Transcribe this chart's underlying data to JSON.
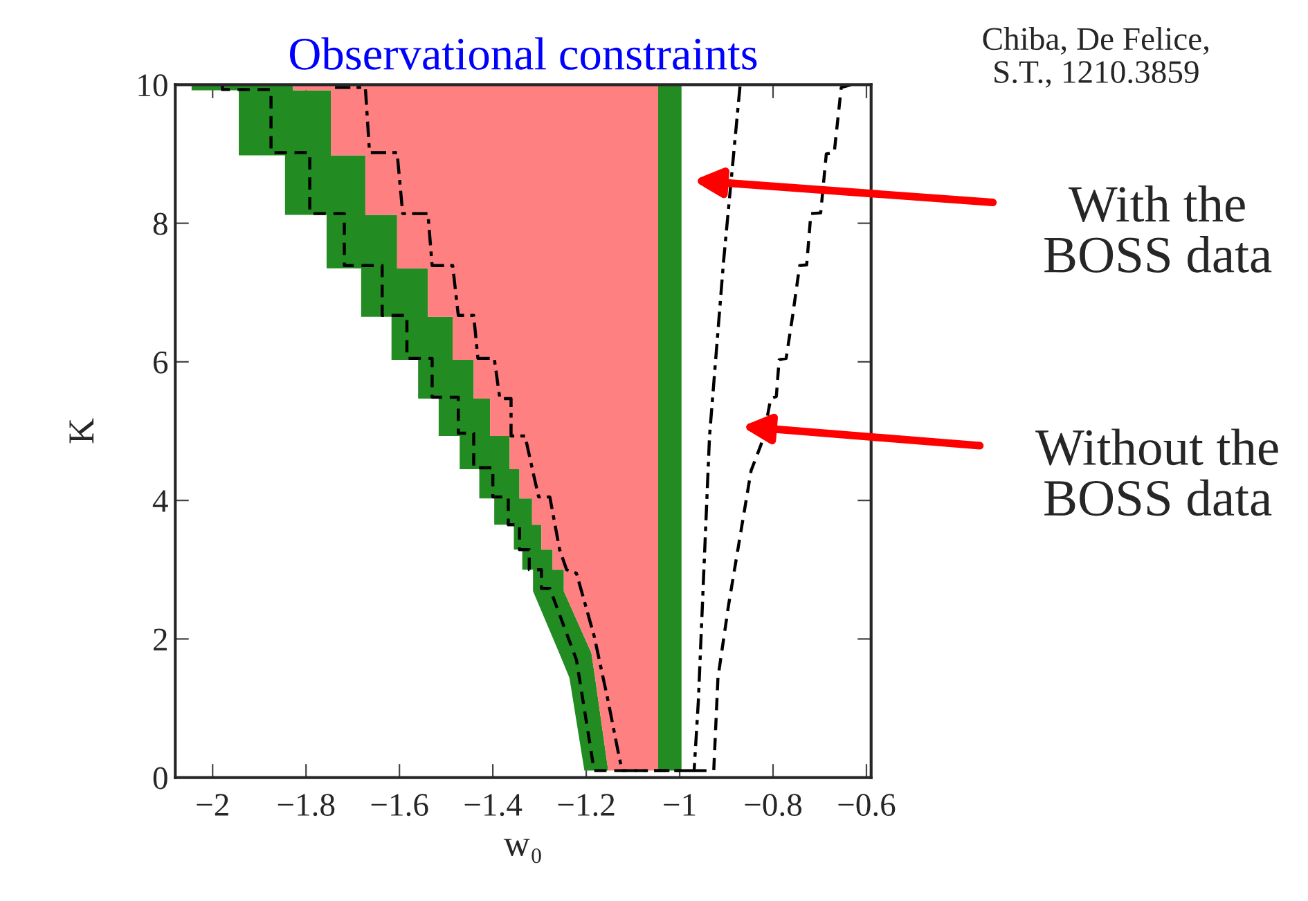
{
  "chart_data": {
    "type": "area",
    "title": "Observational constraints",
    "xlabel": "w₀",
    "ylabel": "K",
    "xlim": [
      -2.08,
      -0.59
    ],
    "ylim": [
      0,
      10
    ],
    "xticks": [
      {
        "value": -2,
        "label": "−2"
      },
      {
        "value": -1.8,
        "label": "−1.8"
      },
      {
        "value": -1.6,
        "label": "−1.6"
      },
      {
        "value": -1.4,
        "label": "−1.4"
      },
      {
        "value": -1.2,
        "label": "−1.2"
      },
      {
        "value": -1,
        "label": "−1"
      },
      {
        "value": -0.8,
        "label": "−0.8"
      },
      {
        "value": -0.6,
        "label": "−0.6"
      }
    ],
    "yticks": [
      0,
      2,
      4,
      6,
      8,
      10
    ],
    "grid": false,
    "legend": false,
    "series": [
      {
        "color": "#228b22",
        "x": [
          -2.045,
          -2.045,
          -1.944,
          -1.944,
          -1.845,
          -1.845,
          -1.756,
          -1.756,
          -1.682,
          -1.682,
          -1.617,
          -1.617,
          -1.56,
          -1.56,
          -1.516,
          -1.516,
          -1.471,
          -1.471,
          -1.429,
          -1.429,
          -1.397,
          -1.397,
          -1.355,
          -1.355,
          -1.337,
          -1.337,
          -1.314,
          -1.314,
          -1.258,
          -1.236,
          -1.204,
          -1.153,
          -1.181,
          -1.189,
          -1.248,
          -1.248,
          -1.272,
          -1.272,
          -1.296,
          -1.296,
          -1.316,
          -1.316,
          -1.343,
          -1.343,
          -1.364,
          -1.364,
          -1.406,
          -1.406,
          -1.441,
          -1.441,
          -1.486,
          -1.486,
          -1.539,
          -1.539,
          -1.605,
          -1.605,
          -1.673,
          -1.673,
          -1.747,
          -1.747,
          -1.828,
          -1.828
        ],
        "values": [
          10,
          9.92,
          9.92,
          8.98,
          8.98,
          8.12,
          8.12,
          7.35,
          7.35,
          6.65,
          6.65,
          6.03,
          6.03,
          5.47,
          5.47,
          4.93,
          4.93,
          4.45,
          4.45,
          4.03,
          4.03,
          3.65,
          3.65,
          3.29,
          3.29,
          3.0,
          3.0,
          2.69,
          1.8,
          1.44,
          0.1,
          0.1,
          1.44,
          1.8,
          2.69,
          3.0,
          3.0,
          3.29,
          3.29,
          3.65,
          3.65,
          4.03,
          4.03,
          4.45,
          4.45,
          4.93,
          4.93,
          5.47,
          5.47,
          6.03,
          6.03,
          6.65,
          6.65,
          7.35,
          7.35,
          8.12,
          8.12,
          8.98,
          8.98,
          9.92,
          9.92,
          10
        ]
      },
      {
        "color": "#ff8080",
        "x": [
          -1.828,
          -1.828,
          -1.747,
          -1.747,
          -1.673,
          -1.673,
          -1.605,
          -1.605,
          -1.539,
          -1.539,
          -1.486,
          -1.486,
          -1.441,
          -1.441,
          -1.406,
          -1.406,
          -1.364,
          -1.364,
          -1.343,
          -1.343,
          -1.316,
          -1.316,
          -1.296,
          -1.296,
          -1.272,
          -1.272,
          -1.248,
          -1.248,
          -1.189,
          -1.181,
          -1.153,
          -1.046,
          -1.046
        ],
        "values": [
          10,
          9.92,
          9.92,
          8.98,
          8.98,
          8.12,
          8.12,
          7.35,
          7.35,
          6.65,
          6.65,
          6.03,
          6.03,
          5.47,
          5.47,
          4.93,
          4.93,
          4.45,
          4.45,
          4.03,
          4.03,
          3.65,
          3.65,
          3.29,
          3.29,
          3.0,
          3.0,
          2.69,
          1.8,
          1.44,
          0.1,
          0.1,
          10
        ]
      },
      {
        "color": "#228b22",
        "x": [
          -1.046,
          -0.996,
          -0.996,
          -1.046
        ],
        "values": [
          10,
          10,
          0.1,
          0.1
        ]
      },
      {
        "type": "line",
        "color": "#000000",
        "line_style": "dashed",
        "x": [
          -1.979,
          -1.979,
          -1.875,
          -1.875,
          -1.792,
          -1.792,
          -1.718,
          -1.718,
          -1.637,
          -1.637,
          -1.584,
          -1.584,
          -1.53,
          -1.53,
          -1.474,
          -1.474,
          -1.441,
          -1.441,
          -1.4,
          -1.4,
          -1.367,
          -1.367,
          -1.343,
          -1.343,
          -1.322,
          -1.322,
          -1.296,
          -1.296,
          -1.278,
          -1.221,
          -1.183,
          -0.927,
          -0.918,
          -0.895,
          -0.847,
          -0.826,
          -0.82,
          -0.805,
          -0.793,
          -0.787,
          -0.772,
          -0.758,
          -0.743,
          -0.728,
          -0.719,
          -0.698,
          -0.686,
          -0.669,
          -0.654,
          -0.633
        ],
        "values": [
          10,
          9.93,
          9.93,
          9.02,
          9.02,
          8.14,
          8.14,
          7.39,
          7.39,
          6.67,
          6.67,
          6.05,
          6.05,
          5.49,
          5.49,
          4.97,
          4.97,
          4.47,
          4.47,
          4.05,
          4.05,
          3.65,
          3.65,
          3.29,
          3.29,
          3.0,
          3.0,
          2.73,
          2.73,
          1.7,
          0.1,
          0.1,
          1.44,
          2.5,
          4.43,
          4.8,
          4.93,
          5.47,
          5.5,
          6.03,
          6.05,
          6.67,
          7.39,
          7.4,
          8.14,
          8.15,
          9.0,
          9.02,
          9.96,
          10
        ]
      },
      {
        "type": "line",
        "color": "#000000",
        "line_style": "dashdot",
        "x": [
          -1.738,
          -1.673,
          -1.664,
          -1.605,
          -1.593,
          -1.539,
          -1.53,
          -1.486,
          -1.474,
          -1.441,
          -1.432,
          -1.397,
          -1.385,
          -1.361,
          -1.361,
          -1.331,
          -1.316,
          -1.302,
          -1.278,
          -1.257,
          -1.242,
          -1.221,
          -1.183,
          -1.153,
          -1.129,
          -1.123,
          -0.969,
          -0.96,
          -0.936,
          -0.906,
          -0.871,
          -0.87
        ],
        "values": [
          9.96,
          9.96,
          9.02,
          9.02,
          8.14,
          8.14,
          7.39,
          7.39,
          6.67,
          6.67,
          6.05,
          6.05,
          5.47,
          5.47,
          4.93,
          4.93,
          4.47,
          4.05,
          4.05,
          3.29,
          3.0,
          2.95,
          2.04,
          1.1,
          0.28,
          0.1,
          0.1,
          1.1,
          4.93,
          7.45,
          9.96,
          10
        ]
      }
    ],
    "annotations": [
      "With the\nBOSS data",
      "Without the\nBOSS data",
      "Chiba, De Felice,\nS.T., 1210.3859"
    ]
  }
}
